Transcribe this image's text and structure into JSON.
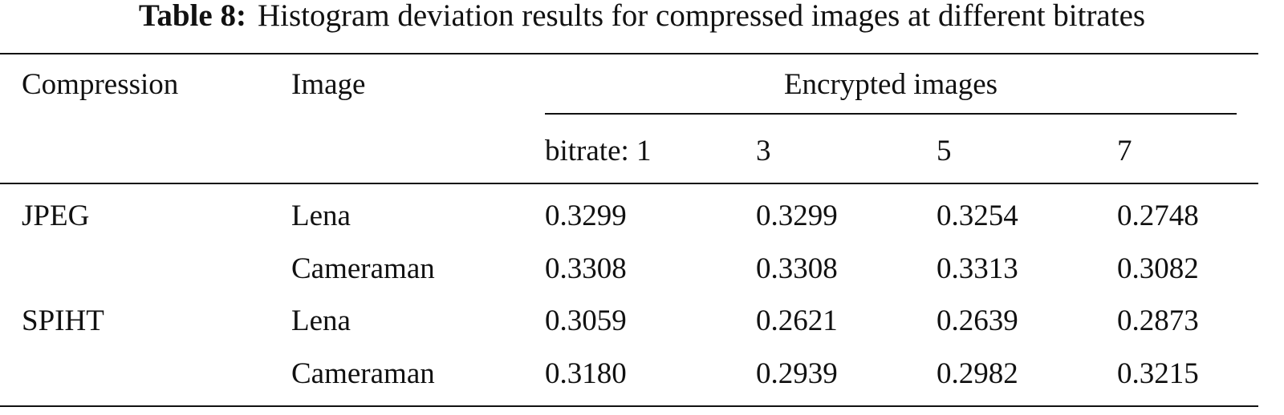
{
  "caption": {
    "label": "Table 8:",
    "text": "Histogram deviation results for compressed images at different bitrates"
  },
  "table": {
    "headers": {
      "compression": "Compression",
      "image": "Image",
      "group": "Encrypted images",
      "bitrates": [
        "bitrate: 1",
        "3",
        "5",
        "7"
      ]
    },
    "rows": [
      {
        "compression": "JPEG",
        "image": "Lena",
        "values": [
          "0.3299",
          "0.3299",
          "0.3254",
          "0.2748"
        ]
      },
      {
        "compression": "",
        "image": "Cameraman",
        "values": [
          "0.3308",
          "0.3308",
          "0.3313",
          "0.3082"
        ]
      },
      {
        "compression": "SPIHT",
        "image": "Lena",
        "values": [
          "0.3059",
          "0.2621",
          "0.2639",
          "0.2873"
        ]
      },
      {
        "compression": "",
        "image": "Cameraman",
        "values": [
          "0.3180",
          "0.2939",
          "0.2982",
          "0.3215"
        ]
      }
    ]
  }
}
